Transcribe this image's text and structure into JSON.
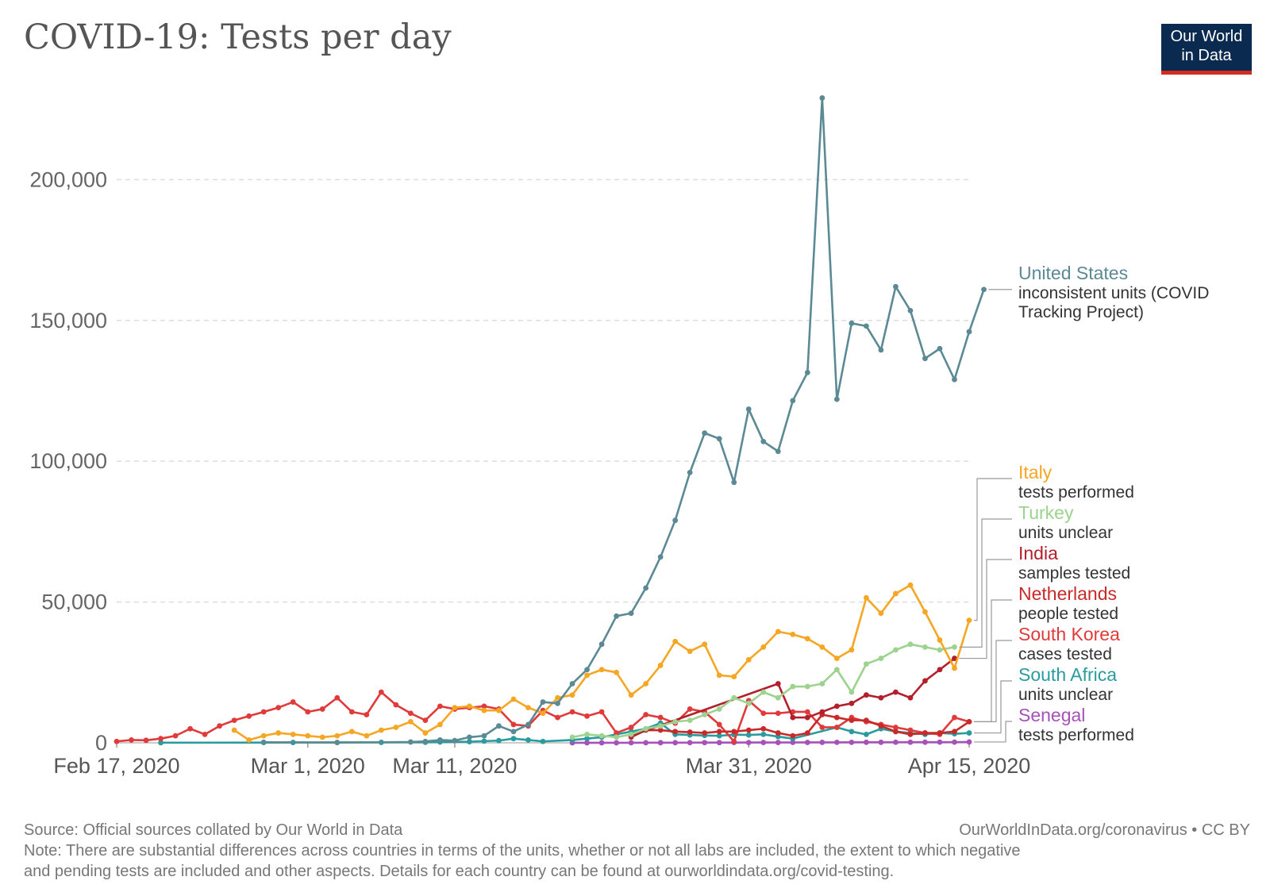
{
  "title": "COVID-19: Tests per day",
  "logo": {
    "line1": "Our World",
    "line2": "in Data"
  },
  "footer": {
    "source": "Source: Official sources collated by Our World in Data",
    "license": "OurWorldInData.org/coronavirus • CC BY",
    "note1": "Note: There are substantial differences across countries in terms of the units, whether or not all labs are included, the extent to which negative",
    "note2": "and pending tests are included and other aspects. Details for each country can be found at ourworldindata.org/covid-testing."
  },
  "chart_data": {
    "type": "line",
    "x_start": "2020-02-17",
    "xticks": [
      {
        "label": "Feb 17, 2020",
        "day": 0
      },
      {
        "label": "Mar 1, 2020",
        "day": 13
      },
      {
        "label": "Mar 11, 2020",
        "day": 23
      },
      {
        "label": "Mar 31, 2020",
        "day": 43
      },
      {
        "label": "Apr 15, 2020",
        "day": 58
      }
    ],
    "yticks": [
      {
        "label": "0",
        "value": 0
      },
      {
        "label": "50,000",
        "value": 50000
      },
      {
        "label": "100,000",
        "value": 100000
      },
      {
        "label": "150,000",
        "value": 150000
      },
      {
        "label": "200,000",
        "value": 200000
      }
    ],
    "xlim": [
      0,
      58
    ],
    "ylim": [
      0,
      228000
    ],
    "series": [
      {
        "name": "Senegal",
        "unit": "tests performed",
        "color": "#a652ba",
        "points": [
          [
            31,
            5
          ],
          [
            32,
            10
          ],
          [
            33,
            15
          ],
          [
            34,
            20
          ],
          [
            35,
            30
          ],
          [
            36,
            40
          ],
          [
            37,
            50
          ],
          [
            38,
            60
          ],
          [
            39,
            70
          ],
          [
            40,
            80
          ],
          [
            41,
            90
          ],
          [
            42,
            100
          ],
          [
            43,
            110
          ],
          [
            44,
            120
          ],
          [
            45,
            130
          ],
          [
            46,
            140
          ],
          [
            47,
            150
          ],
          [
            48,
            160
          ],
          [
            49,
            170
          ],
          [
            50,
            180
          ],
          [
            51,
            190
          ],
          [
            52,
            200
          ],
          [
            53,
            210
          ],
          [
            54,
            220
          ],
          [
            55,
            230
          ],
          [
            56,
            240
          ],
          [
            57,
            250
          ],
          [
            58,
            300
          ]
        ]
      },
      {
        "name": "South Africa",
        "unit": "units unclear",
        "color": "#2a9c9e",
        "points": [
          [
            3,
            50
          ],
          [
            10,
            100
          ],
          [
            12,
            120
          ],
          [
            15,
            150
          ],
          [
            18,
            160
          ],
          [
            21,
            200
          ],
          [
            22,
            300
          ],
          [
            24,
            400
          ],
          [
            25,
            600
          ],
          [
            26,
            800
          ],
          [
            27,
            1500
          ],
          [
            28,
            1000
          ],
          [
            29,
            500
          ],
          [
            31,
            1000
          ],
          [
            32,
            1500
          ],
          [
            33,
            2000
          ],
          [
            34,
            3000
          ],
          [
            35,
            4000
          ],
          [
            36,
            5000
          ],
          [
            37,
            7000
          ],
          [
            38,
            3000
          ],
          [
            39,
            2800
          ],
          [
            40,
            2600
          ],
          [
            41,
            2500
          ],
          [
            42,
            2900
          ],
          [
            43,
            2800
          ],
          [
            44,
            3000
          ],
          [
            45,
            2200
          ],
          [
            46,
            1500
          ],
          [
            49,
            5500
          ],
          [
            50,
            4000
          ],
          [
            51,
            3000
          ],
          [
            52,
            5000
          ],
          [
            53,
            4000
          ],
          [
            54,
            3500
          ],
          [
            55,
            3000
          ],
          [
            56,
            3500
          ],
          [
            57,
            3200
          ],
          [
            58,
            3500
          ]
        ]
      },
      {
        "name": "South Korea",
        "unit": "cases tested",
        "color": "#e03a3a",
        "points": [
          [
            0,
            500
          ],
          [
            1,
            1000
          ],
          [
            2,
            900
          ],
          [
            3,
            1500
          ],
          [
            4,
            2500
          ],
          [
            5,
            5000
          ],
          [
            6,
            3000
          ],
          [
            7,
            6000
          ],
          [
            8,
            8000
          ],
          [
            9,
            9500
          ],
          [
            10,
            11000
          ],
          [
            11,
            12500
          ],
          [
            12,
            14500
          ],
          [
            13,
            11000
          ],
          [
            14,
            12000
          ],
          [
            15,
            16000
          ],
          [
            16,
            11000
          ],
          [
            17,
            10000
          ],
          [
            18,
            18000
          ],
          [
            19,
            13500
          ],
          [
            20,
            10500
          ],
          [
            21,
            8000
          ],
          [
            22,
            13000
          ],
          [
            23,
            12000
          ],
          [
            24,
            12500
          ],
          [
            25,
            13000
          ],
          [
            26,
            12000
          ],
          [
            27,
            6500
          ],
          [
            28,
            6000
          ],
          [
            29,
            11500
          ],
          [
            30,
            9000
          ],
          [
            31,
            11000
          ],
          [
            32,
            9500
          ],
          [
            33,
            11000
          ],
          [
            34,
            3500
          ],
          [
            35,
            5500
          ],
          [
            36,
            10000
          ],
          [
            37,
            9000
          ],
          [
            38,
            7000
          ],
          [
            39,
            12000
          ],
          [
            40,
            11000
          ],
          [
            41,
            6500
          ],
          [
            42,
            500
          ],
          [
            43,
            15000
          ],
          [
            44,
            10500
          ],
          [
            45,
            10500
          ],
          [
            46,
            11000
          ],
          [
            47,
            11000
          ],
          [
            48,
            5500
          ],
          [
            49,
            5500
          ],
          [
            50,
            9000
          ],
          [
            51,
            7500
          ],
          [
            52,
            6500
          ],
          [
            53,
            5500
          ],
          [
            54,
            4500
          ],
          [
            55,
            3500
          ],
          [
            56,
            3000
          ],
          [
            57,
            9000
          ],
          [
            58,
            7500
          ]
        ]
      },
      {
        "name": "Netherlands",
        "unit": "people tested",
        "color": "#c82a2a",
        "points": [
          [
            35,
            2000
          ],
          [
            36,
            4500
          ],
          [
            37,
            4500
          ],
          [
            38,
            4000
          ],
          [
            39,
            3800
          ],
          [
            40,
            3500
          ],
          [
            41,
            4000
          ],
          [
            42,
            4000
          ],
          [
            43,
            4500
          ],
          [
            44,
            5000
          ],
          [
            45,
            3500
          ],
          [
            46,
            2500
          ],
          [
            47,
            3500
          ],
          [
            48,
            10000
          ],
          [
            49,
            9000
          ],
          [
            50,
            8000
          ],
          [
            51,
            8000
          ],
          [
            52,
            6000
          ],
          [
            53,
            4000
          ],
          [
            54,
            3000
          ],
          [
            55,
            3500
          ],
          [
            56,
            3500
          ],
          [
            57,
            4000
          ],
          [
            58,
            7500
          ]
        ]
      },
      {
        "name": "India",
        "unit": "samples tested",
        "color": "#b3202b",
        "points": [
          [
            35,
            2500
          ],
          [
            45,
            21000
          ],
          [
            46,
            9000
          ],
          [
            47,
            9000
          ],
          [
            48,
            11000
          ],
          [
            49,
            13000
          ],
          [
            50,
            14000
          ],
          [
            51,
            17000
          ],
          [
            52,
            16000
          ],
          [
            53,
            18000
          ],
          [
            54,
            16000
          ],
          [
            55,
            22000
          ],
          [
            56,
            26000
          ],
          [
            57,
            30000
          ]
        ]
      },
      {
        "name": "Turkey",
        "unit": "units unclear",
        "color": "#9dd28f",
        "points": [
          [
            31,
            2000
          ],
          [
            32,
            3000
          ],
          [
            33,
            2500
          ],
          [
            34,
            2000
          ],
          [
            35,
            3000
          ],
          [
            36,
            5000
          ],
          [
            37,
            6000
          ],
          [
            38,
            7500
          ],
          [
            39,
            8000
          ],
          [
            40,
            10000
          ],
          [
            41,
            12000
          ],
          [
            42,
            16000
          ],
          [
            43,
            14000
          ],
          [
            44,
            18000
          ],
          [
            45,
            16000
          ],
          [
            46,
            20000
          ],
          [
            47,
            20000
          ],
          [
            48,
            21000
          ],
          [
            49,
            26000
          ],
          [
            50,
            18000
          ],
          [
            51,
            28000
          ],
          [
            52,
            30000
          ],
          [
            53,
            33000
          ],
          [
            54,
            35000
          ],
          [
            55,
            34000
          ],
          [
            56,
            33000
          ],
          [
            57,
            34000
          ]
        ]
      },
      {
        "name": "Italy",
        "unit": "tests performed",
        "color": "#f5a623",
        "points": [
          [
            8,
            4500
          ],
          [
            9,
            1000
          ],
          [
            10,
            2500
          ],
          [
            11,
            3500
          ],
          [
            12,
            3000
          ],
          [
            13,
            2500
          ],
          [
            14,
            2000
          ],
          [
            15,
            2500
          ],
          [
            16,
            4000
          ],
          [
            17,
            2500
          ],
          [
            18,
            4500
          ],
          [
            19,
            5500
          ],
          [
            20,
            7500
          ],
          [
            21,
            3500
          ],
          [
            22,
            6500
          ],
          [
            23,
            12500
          ],
          [
            24,
            13000
          ],
          [
            25,
            11500
          ],
          [
            26,
            11500
          ],
          [
            27,
            15500
          ],
          [
            28,
            12500
          ],
          [
            29,
            10500
          ],
          [
            30,
            16000
          ],
          [
            31,
            17000
          ],
          [
            32,
            24000
          ],
          [
            33,
            26000
          ],
          [
            34,
            25000
          ],
          [
            35,
            17000
          ],
          [
            36,
            21000
          ],
          [
            37,
            27500
          ],
          [
            38,
            36000
          ],
          [
            39,
            32500
          ],
          [
            40,
            35000
          ],
          [
            41,
            24000
          ],
          [
            42,
            23500
          ],
          [
            43,
            29500
          ],
          [
            44,
            34000
          ],
          [
            45,
            39500
          ],
          [
            46,
            38500
          ],
          [
            47,
            37000
          ],
          [
            48,
            34000
          ],
          [
            49,
            30000
          ],
          [
            50,
            33000
          ],
          [
            51,
            51500
          ],
          [
            52,
            46000
          ],
          [
            53,
            53000
          ],
          [
            54,
            56000
          ],
          [
            55,
            46500
          ],
          [
            56,
            36500
          ],
          [
            57,
            26500
          ],
          [
            58,
            43500
          ]
        ]
      },
      {
        "name": "United States",
        "unit": "inconsistent units (COVID Tracking Project)",
        "color": "#5b8a94",
        "points": [
          [
            10,
            200
          ],
          [
            15,
            100
          ],
          [
            20,
            300
          ],
          [
            21,
            500
          ],
          [
            22,
            1000
          ],
          [
            23,
            800
          ],
          [
            24,
            2000
          ],
          [
            25,
            2500
          ],
          [
            26,
            6000
          ],
          [
            27,
            4000
          ],
          [
            28,
            6500
          ],
          [
            29,
            14500
          ],
          [
            30,
            14000
          ],
          [
            31,
            21000
          ],
          [
            32,
            26000
          ],
          [
            33,
            35000
          ],
          [
            34,
            45000
          ],
          [
            35,
            46000
          ],
          [
            36,
            55000
          ],
          [
            37,
            66000
          ],
          [
            38,
            79000
          ],
          [
            39,
            96000
          ],
          [
            40,
            110000
          ],
          [
            41,
            108000
          ],
          [
            42,
            92500
          ],
          [
            43,
            118500
          ],
          [
            44,
            107000
          ],
          [
            45,
            103500
          ],
          [
            46,
            121500
          ],
          [
            47,
            131500
          ],
          [
            48,
            229000
          ],
          [
            49,
            122000
          ],
          [
            50,
            149000
          ],
          [
            51,
            148000
          ],
          [
            52,
            139500
          ],
          [
            53,
            162000
          ],
          [
            54,
            153500
          ],
          [
            55,
            136500
          ],
          [
            56,
            140000
          ],
          [
            57,
            129000
          ],
          [
            58,
            146000
          ],
          [
            59,
            161000
          ]
        ]
      }
    ]
  }
}
